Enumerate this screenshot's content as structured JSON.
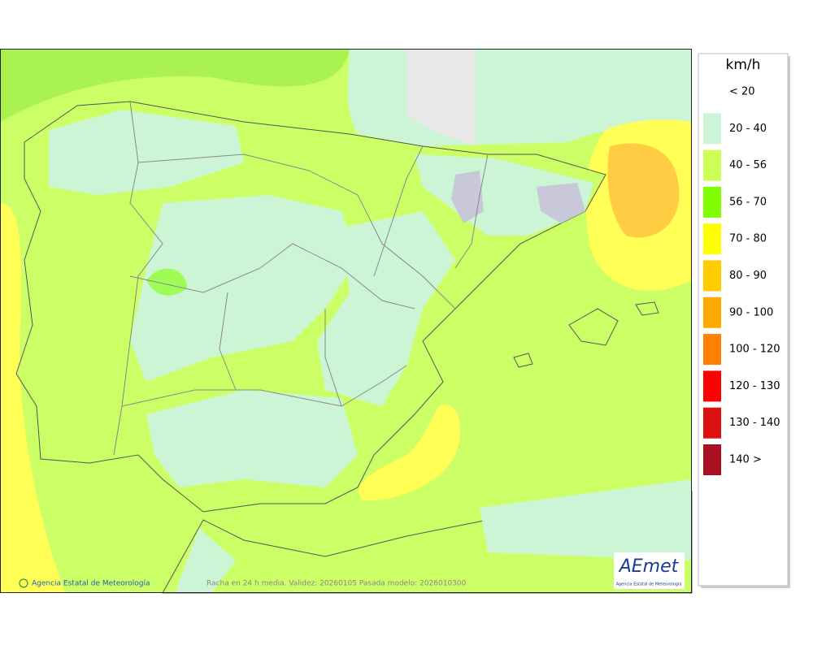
{
  "legend": {
    "title": "km/h",
    "items": [
      {
        "label": "< 20"
      },
      {
        "label": "20 - 40",
        "color": "#ccf5d6"
      },
      {
        "label": "40 - 56",
        "color": "#ccff55"
      },
      {
        "label": "56 - 70",
        "color": "#80ff00"
      },
      {
        "label": "70 - 80",
        "color": "#ffff00"
      },
      {
        "label": "80 - 90",
        "color": "#ffcc00"
      },
      {
        "label": "90 - 100",
        "color": "#ffaa00"
      },
      {
        "label": "100 - 120",
        "color": "#ff8000"
      },
      {
        "label": "120 - 130",
        "color": "#ff0000"
      },
      {
        "label": "130 - 140",
        "color": "#dd1111"
      },
      {
        "label": "140 >",
        "color": "#aa1122"
      }
    ]
  },
  "footer": {
    "credit": "Agencia Estatal de Meteorología",
    "caption": "Racha en 24 h media. Validez: 20260105 Pasada modelo: 2026010300"
  },
  "logo": {
    "name": "AEmet",
    "subtitle": "Agencia Estatal de Meteorología"
  }
}
